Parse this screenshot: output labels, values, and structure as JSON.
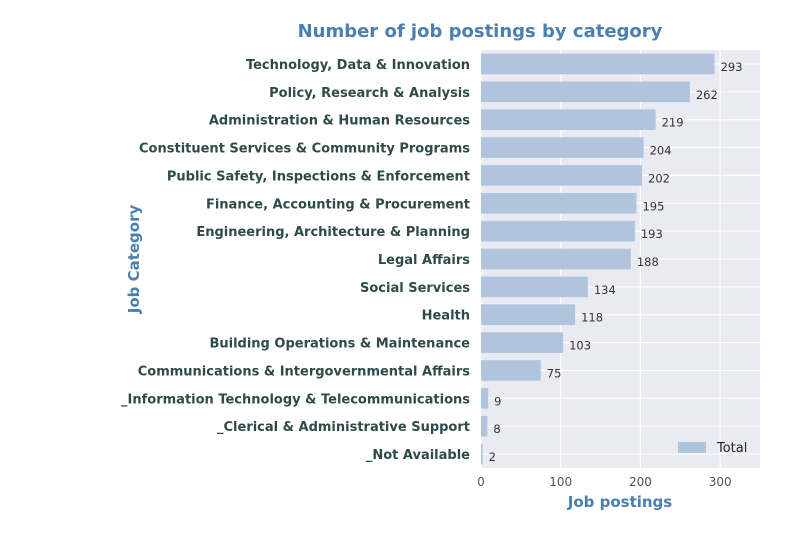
{
  "chart_data": {
    "type": "bar",
    "orientation": "horizontal",
    "title": "Number of job postings by category",
    "xlabel": "Job postings",
    "ylabel": "Job Category",
    "xlim": [
      0,
      350
    ],
    "xticks": [
      0,
      100,
      200,
      300
    ],
    "grid": true,
    "legend_position": "bottom-right",
    "categories": [
      "Technology, Data & Innovation",
      "Policy, Research & Analysis",
      "Administration & Human Resources",
      "Constituent Services & Community Programs",
      "Public Safety, Inspections & Enforcement",
      "Finance, Accounting & Procurement",
      "Engineering, Architecture & Planning",
      "Legal Affairs",
      "Social Services",
      "Health",
      "Building Operations & Maintenance",
      "Communications & Intergovernmental Affairs",
      "_Information Technology & Telecommunications",
      "_Clerical & Administrative Support",
      "_Not Available"
    ],
    "series": [
      {
        "name": "Total",
        "values": [
          293,
          262,
          219,
          204,
          202,
          195,
          193,
          188,
          134,
          118,
          103,
          75,
          9,
          8,
          2
        ]
      }
    ],
    "colors": {
      "bar": "#b0c4de",
      "plot_background": "#eaeaf2",
      "grid": "#ffffff",
      "title": "#4a7fb0",
      "category_text": "#2f4a4a"
    }
  }
}
